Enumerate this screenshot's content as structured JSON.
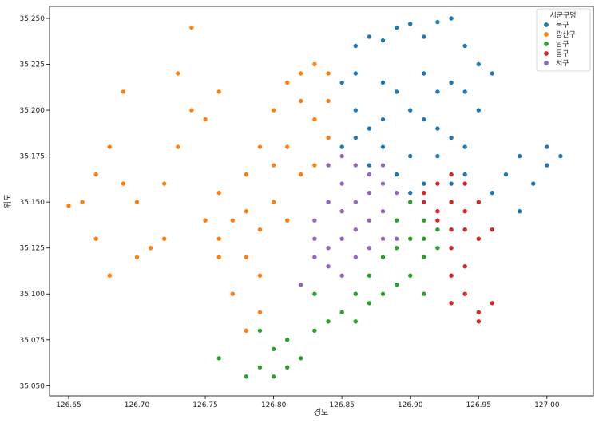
{
  "chart_data": {
    "type": "scatter",
    "title": "",
    "xlabel": "경도",
    "ylabel": "위도",
    "xlim": [
      126.636,
      127.034
    ],
    "ylim": [
      35.0445,
      35.2565
    ],
    "xticks": [
      126.65,
      126.7,
      126.75,
      126.8,
      126.85,
      126.9,
      126.95,
      127.0
    ],
    "xtick_labels": [
      "126.65",
      "126.70",
      "126.75",
      "126.80",
      "126.85",
      "126.90",
      "126.95",
      "127.00"
    ],
    "yticks": [
      35.05,
      35.075,
      35.1,
      35.125,
      35.15,
      35.175,
      35.2,
      35.225,
      35.25
    ],
    "ytick_labels": [
      "35.050",
      "35.075",
      "35.100",
      "35.125",
      "35.150",
      "35.175",
      "35.200",
      "35.225",
      "35.250"
    ],
    "grid": false,
    "legend": {
      "title": "시군구명",
      "placement": "top-right"
    },
    "series": [
      {
        "name": "북구",
        "color": "#1f77b4",
        "points": [
          [
            126.86,
            35.235
          ],
          [
            126.87,
            35.24
          ],
          [
            126.88,
            35.238
          ],
          [
            126.89,
            35.245
          ],
          [
            126.9,
            35.247
          ],
          [
            126.91,
            35.24
          ],
          [
            126.92,
            35.248
          ],
          [
            126.93,
            35.25
          ],
          [
            126.94,
            35.235
          ],
          [
            126.95,
            35.225
          ],
          [
            126.96,
            35.22
          ],
          [
            126.95,
            35.2
          ],
          [
            126.94,
            35.21
          ],
          [
            126.93,
            35.215
          ],
          [
            126.92,
            35.21
          ],
          [
            126.88,
            35.215
          ],
          [
            126.86,
            35.22
          ],
          [
            126.85,
            35.215
          ],
          [
            126.86,
            35.2
          ],
          [
            126.88,
            35.195
          ],
          [
            126.9,
            35.2
          ],
          [
            126.91,
            35.195
          ],
          [
            126.92,
            35.19
          ],
          [
            126.93,
            35.185
          ],
          [
            126.94,
            35.18
          ],
          [
            126.92,
            35.175
          ],
          [
            126.9,
            35.175
          ],
          [
            126.88,
            35.18
          ],
          [
            126.86,
            35.185
          ],
          [
            126.85,
            35.18
          ],
          [
            126.87,
            35.17
          ],
          [
            126.89,
            35.165
          ],
          [
            126.91,
            35.16
          ],
          [
            126.93,
            35.16
          ],
          [
            126.9,
            35.155
          ],
          [
            126.98,
            35.175
          ],
          [
            126.97,
            35.165
          ],
          [
            126.99,
            35.16
          ],
          [
            127.0,
            35.18
          ],
          [
            127.01,
            35.175
          ],
          [
            126.98,
            35.145
          ],
          [
            126.96,
            35.155
          ],
          [
            127.0,
            35.17
          ],
          [
            126.84,
            35.205
          ],
          [
            126.87,
            35.19
          ],
          [
            126.89,
            35.21
          ],
          [
            126.91,
            35.22
          ],
          [
            126.94,
            35.165
          ]
        ]
      },
      {
        "name": "광산구",
        "color": "#ff7f0e",
        "points": [
          [
            126.66,
            35.15
          ],
          [
            126.67,
            35.165
          ],
          [
            126.68,
            35.18
          ],
          [
            126.69,
            35.21
          ],
          [
            126.68,
            35.11
          ],
          [
            126.67,
            35.13
          ],
          [
            126.69,
            35.16
          ],
          [
            126.7,
            35.15
          ],
          [
            126.71,
            35.125
          ],
          [
            126.72,
            35.16
          ],
          [
            126.73,
            35.18
          ],
          [
            126.74,
            35.245
          ],
          [
            126.73,
            35.22
          ],
          [
            126.74,
            35.2
          ],
          [
            126.75,
            35.195
          ],
          [
            126.76,
            35.21
          ],
          [
            126.75,
            35.14
          ],
          [
            126.76,
            35.12
          ],
          [
            126.77,
            35.1
          ],
          [
            126.78,
            35.08
          ],
          [
            126.79,
            35.09
          ],
          [
            126.77,
            35.14
          ],
          [
            126.78,
            35.165
          ],
          [
            126.79,
            35.18
          ],
          [
            126.8,
            35.2
          ],
          [
            126.81,
            35.215
          ],
          [
            126.82,
            35.22
          ],
          [
            126.83,
            35.225
          ],
          [
            126.84,
            35.22
          ],
          [
            126.81,
            35.18
          ],
          [
            126.82,
            35.165
          ],
          [
            126.8,
            35.15
          ],
          [
            126.79,
            35.135
          ],
          [
            126.78,
            35.12
          ],
          [
            126.76,
            35.13
          ],
          [
            126.81,
            35.14
          ],
          [
            126.83,
            35.195
          ],
          [
            126.82,
            35.205
          ],
          [
            126.84,
            35.185
          ],
          [
            126.8,
            35.17
          ],
          [
            126.78,
            35.145
          ],
          [
            126.76,
            35.155
          ],
          [
            126.65,
            35.148
          ],
          [
            126.7,
            35.12
          ],
          [
            126.72,
            35.13
          ],
          [
            126.79,
            35.11
          ],
          [
            126.83,
            35.17
          ],
          [
            126.84,
            35.205
          ]
        ]
      },
      {
        "name": "남구",
        "color": "#2ca02c",
        "points": [
          [
            126.76,
            35.065
          ],
          [
            126.78,
            35.055
          ],
          [
            126.79,
            35.06
          ],
          [
            126.8,
            35.055
          ],
          [
            126.81,
            35.06
          ],
          [
            126.81,
            35.075
          ],
          [
            126.82,
            35.065
          ],
          [
            126.83,
            35.08
          ],
          [
            126.84,
            35.085
          ],
          [
            126.85,
            35.09
          ],
          [
            126.86,
            35.085
          ],
          [
            126.87,
            35.095
          ],
          [
            126.88,
            35.1
          ],
          [
            126.89,
            35.105
          ],
          [
            126.9,
            35.11
          ],
          [
            126.91,
            35.12
          ],
          [
            126.92,
            35.125
          ],
          [
            126.9,
            35.13
          ],
          [
            126.89,
            35.14
          ],
          [
            126.9,
            35.15
          ],
          [
            126.91,
            35.14
          ],
          [
            126.92,
            35.135
          ],
          [
            126.88,
            35.12
          ],
          [
            126.87,
            35.11
          ],
          [
            126.86,
            35.1
          ],
          [
            126.8,
            35.07
          ],
          [
            126.79,
            35.08
          ],
          [
            126.83,
            35.1
          ],
          [
            126.91,
            35.1
          ],
          [
            126.89,
            35.125
          ],
          [
            126.91,
            35.13
          ],
          [
            126.92,
            35.145
          ]
        ]
      },
      {
        "name": "동구",
        "color": "#d62728",
        "points": [
          [
            126.91,
            35.155
          ],
          [
            126.92,
            35.16
          ],
          [
            126.93,
            35.165
          ],
          [
            126.94,
            35.16
          ],
          [
            126.93,
            35.15
          ],
          [
            126.92,
            35.145
          ],
          [
            126.94,
            35.145
          ],
          [
            126.95,
            35.15
          ],
          [
            126.94,
            35.135
          ],
          [
            126.95,
            35.13
          ],
          [
            126.96,
            35.135
          ],
          [
            126.93,
            35.125
          ],
          [
            126.94,
            35.115
          ],
          [
            126.93,
            35.11
          ],
          [
            126.94,
            35.1
          ],
          [
            126.95,
            35.09
          ],
          [
            126.96,
            35.095
          ],
          [
            126.95,
            35.085
          ],
          [
            126.93,
            35.095
          ],
          [
            126.92,
            35.14
          ],
          [
            126.91,
            35.15
          ],
          [
            126.93,
            35.135
          ]
        ]
      },
      {
        "name": "서구",
        "color": "#9467bd",
        "points": [
          [
            126.83,
            35.14
          ],
          [
            126.84,
            35.15
          ],
          [
            126.85,
            35.16
          ],
          [
            126.84,
            35.17
          ],
          [
            126.85,
            35.175
          ],
          [
            126.86,
            35.17
          ],
          [
            126.87,
            35.165
          ],
          [
            126.88,
            35.16
          ],
          [
            126.89,
            35.155
          ],
          [
            126.88,
            35.145
          ],
          [
            126.87,
            35.14
          ],
          [
            126.86,
            35.135
          ],
          [
            126.85,
            35.13
          ],
          [
            126.86,
            35.12
          ],
          [
            126.87,
            35.125
          ],
          [
            126.88,
            35.13
          ],
          [
            126.89,
            35.13
          ],
          [
            126.84,
            35.125
          ],
          [
            126.83,
            35.12
          ],
          [
            126.84,
            35.115
          ],
          [
            126.85,
            35.11
          ],
          [
            126.82,
            35.105
          ],
          [
            126.83,
            35.13
          ],
          [
            126.86,
            35.15
          ],
          [
            126.87,
            35.155
          ],
          [
            126.85,
            35.145
          ],
          [
            126.88,
            35.17
          ]
        ]
      }
    ]
  }
}
